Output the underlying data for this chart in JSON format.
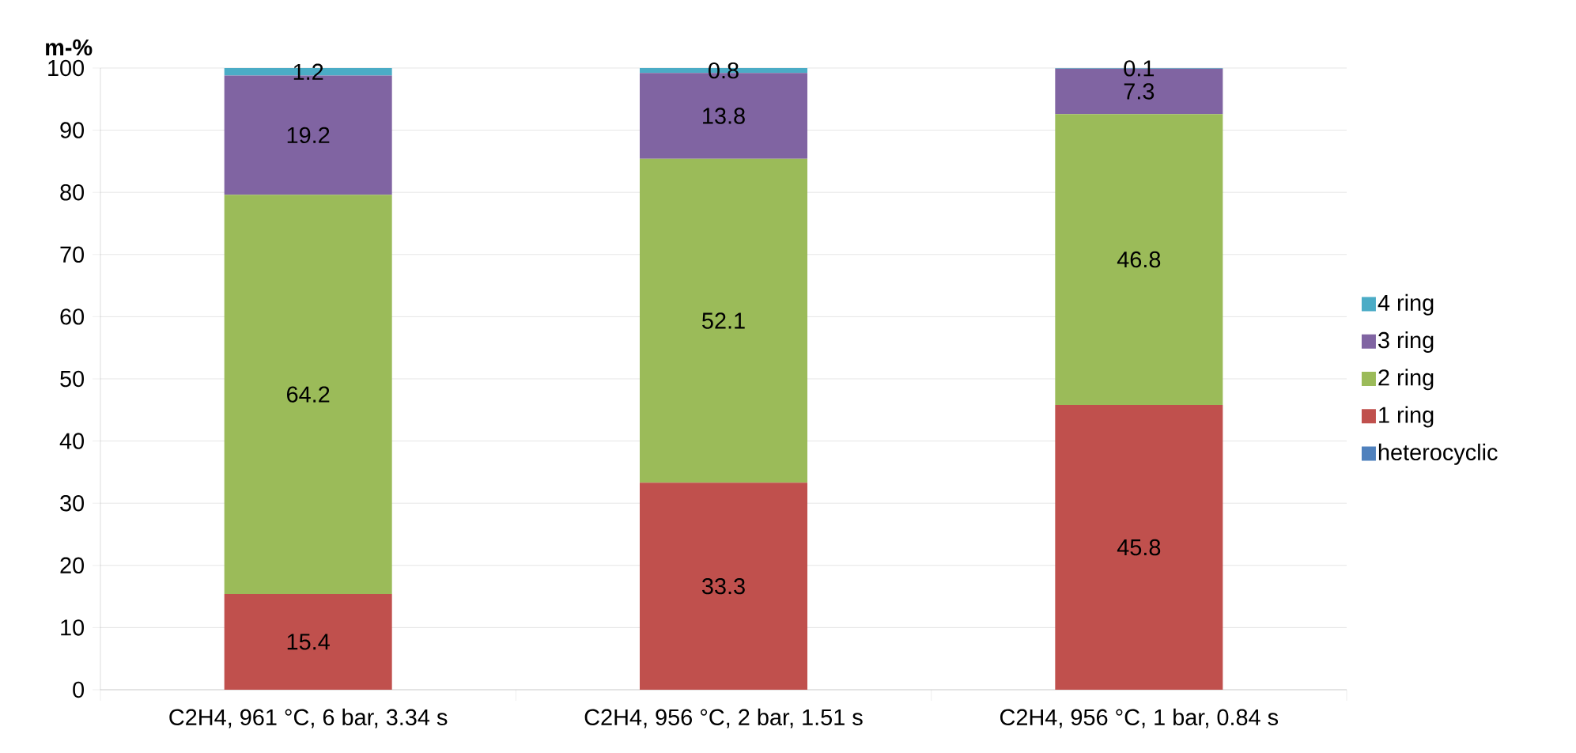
{
  "chart_data": {
    "type": "bar",
    "stacked": true,
    "ylabel": "m-%",
    "categories": [
      "C2H4, 961 °C, 6 bar, 3.34 s",
      "C2H4, 956 °C, 2 bar, 1.51 s",
      "C2H4, 956 °C, 1 bar, 0.84 s"
    ],
    "series": [
      {
        "name": "heterocyclic",
        "color": "#4f81bd",
        "values": [
          0,
          0,
          0
        ],
        "value_labels": [
          null,
          null,
          null
        ]
      },
      {
        "name": "1 ring",
        "color": "#c0504d",
        "values": [
          15.4,
          33.3,
          45.8
        ],
        "value_labels": [
          "15.4",
          "33.3",
          "45.8"
        ]
      },
      {
        "name": "2 ring",
        "color": "#9bbb59",
        "values": [
          64.2,
          52.1,
          46.8
        ],
        "value_labels": [
          "64.2",
          "52.1",
          "46.8"
        ]
      },
      {
        "name": "3 ring",
        "color": "#8064a2",
        "values": [
          19.2,
          13.8,
          7.3
        ],
        "value_labels": [
          "19.2",
          "13.8",
          "7.3"
        ]
      },
      {
        "name": "4 ring",
        "color": "#4bacc6",
        "values": [
          1.2,
          0.8,
          0.1
        ],
        "value_labels": [
          "1.2",
          "0.8",
          "0.1"
        ]
      }
    ],
    "ylim": [
      0,
      100
    ],
    "yticks": [
      0,
      10,
      20,
      30,
      40,
      50,
      60,
      70,
      80,
      90,
      100
    ],
    "grid": "y",
    "legend": "right"
  }
}
